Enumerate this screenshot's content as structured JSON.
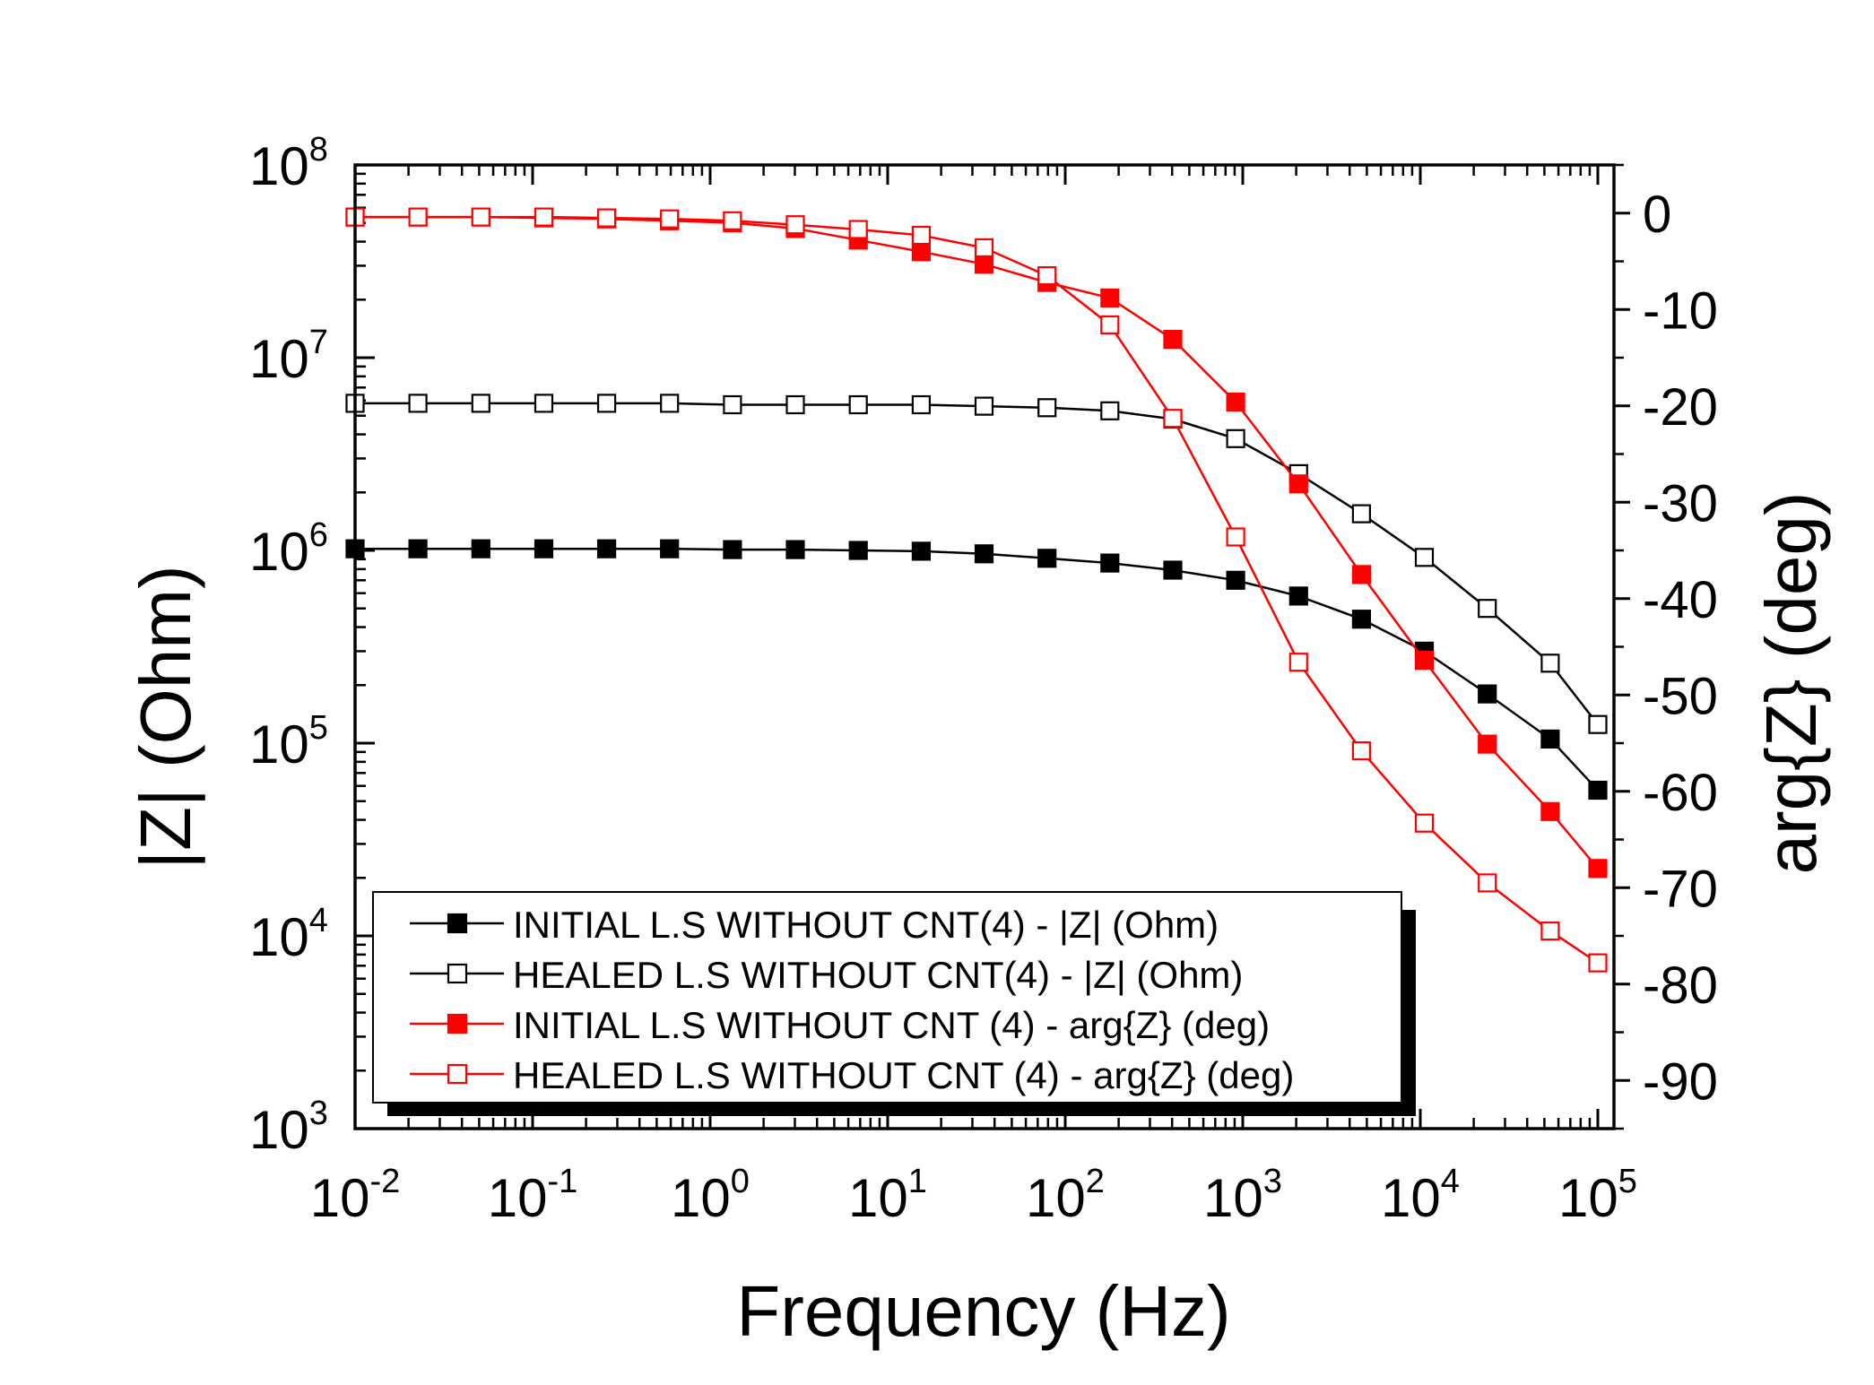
{
  "chart_data": {
    "type": "line",
    "xlabel": "Frequency (Hz)",
    "ylabel_left": "|Z| (Ohm)",
    "ylabel_right": "arg{Z} (deg)",
    "x_scale": "log",
    "xlim": [
      0.01,
      100000
    ],
    "ylim_left": [
      1000,
      100000000
    ],
    "ylim_right": [
      -95,
      5
    ],
    "x_ticks": [
      {
        "base": "10",
        "exp": "-2",
        "value": 0.01
      },
      {
        "base": "10",
        "exp": "-1",
        "value": 0.1
      },
      {
        "base": "10",
        "exp": "0",
        "value": 1
      },
      {
        "base": "10",
        "exp": "1",
        "value": 10
      },
      {
        "base": "10",
        "exp": "2",
        "value": 100
      },
      {
        "base": "10",
        "exp": "3",
        "value": 1000
      },
      {
        "base": "10",
        "exp": "4",
        "value": 10000
      },
      {
        "base": "10",
        "exp": "5",
        "value": 100000
      }
    ],
    "y_left_ticks": [
      {
        "base": "10",
        "exp": "3",
        "value": 1000
      },
      {
        "base": "10",
        "exp": "4",
        "value": 10000
      },
      {
        "base": "10",
        "exp": "5",
        "value": 100000
      },
      {
        "base": "10",
        "exp": "6",
        "value": 1000000
      },
      {
        "base": "10",
        "exp": "7",
        "value": 10000000
      },
      {
        "base": "10",
        "exp": "8",
        "value": 100000000
      }
    ],
    "y_right_ticks": [
      {
        "label": "0",
        "value": 0
      },
      {
        "label": "-10",
        "value": -10
      },
      {
        "label": "-20",
        "value": -20
      },
      {
        "label": "-30",
        "value": -30
      },
      {
        "label": "-40",
        "value": -40
      },
      {
        "label": "-50",
        "value": -50
      },
      {
        "label": "-60",
        "value": -60
      },
      {
        "label": "-70",
        "value": -70
      },
      {
        "label": "-80",
        "value": -80
      },
      {
        "label": "-90",
        "value": -90
      }
    ],
    "x": [
      0.01,
      0.0226,
      0.0511,
      0.1156,
      0.2613,
      0.5908,
      1.336,
      3.02,
      6.83,
      15.44,
      34.91,
      78.93,
      178.5,
      403.5,
      912.3,
      2063,
      4664,
      10540,
      23840,
      53900,
      100000
    ],
    "series": [
      {
        "name": "INITIAL L.S WITHOUT CNT(4) - |Z| (Ohm)",
        "axis": "left",
        "color": "#000000",
        "marker": "filled-square",
        "values": [
          1020000,
          1020000,
          1020000,
          1020000,
          1020000,
          1020000,
          1010000,
          1010000,
          1000000,
          990000,
          960000,
          910000,
          860000,
          790000,
          700000,
          580000,
          440000,
          300000,
          180000,
          105000,
          57000
        ]
      },
      {
        "name": "HEALED L.S WITHOUT CNT(4) - |Z| (Ohm)",
        "axis": "left",
        "color": "#000000",
        "marker": "open-square",
        "values": [
          5800000,
          5800000,
          5800000,
          5800000,
          5800000,
          5800000,
          5700000,
          5700000,
          5700000,
          5700000,
          5600000,
          5500000,
          5300000,
          4800000,
          3800000,
          2500000,
          1550000,
          920000,
          500000,
          260000,
          125000
        ]
      },
      {
        "name": "INITIAL L.S WITHOUT CNT (4) - arg{Z} (deg)",
        "axis": "right",
        "color": "#ff0000",
        "marker": "filled-square",
        "values": [
          -0.4,
          -0.4,
          -0.4,
          -0.5,
          -0.6,
          -0.8,
          -1.0,
          -1.6,
          -2.8,
          -4.0,
          -5.3,
          -7.2,
          -8.8,
          -13.1,
          -19.6,
          -28.1,
          -37.5,
          -46.4,
          -55.1,
          -62.1,
          -68.0
        ]
      },
      {
        "name": "HEALED L.S WITHOUT CNT (4) - arg{Z} (deg)",
        "axis": "right",
        "color": "#ff0000",
        "marker": "open-square",
        "values": [
          -0.4,
          -0.4,
          -0.4,
          -0.4,
          -0.5,
          -0.6,
          -0.8,
          -1.2,
          -1.7,
          -2.3,
          -3.6,
          -6.5,
          -11.6,
          -21.3,
          -33.6,
          -46.6,
          -55.8,
          -63.3,
          -69.5,
          -74.5,
          -77.8
        ]
      }
    ],
    "legend": {
      "placement": "lower-left inside plot",
      "entries": [
        "INITIAL L.S WITHOUT CNT(4) - |Z| (Ohm)",
        "HEALED L.S WITHOUT CNT(4) - |Z| (Ohm)",
        "INITIAL L.S WITHOUT CNT (4) - arg{Z} (deg)",
        "HEALED L.S WITHOUT CNT (4) - arg{Z} (deg)"
      ]
    },
    "grid": false
  }
}
